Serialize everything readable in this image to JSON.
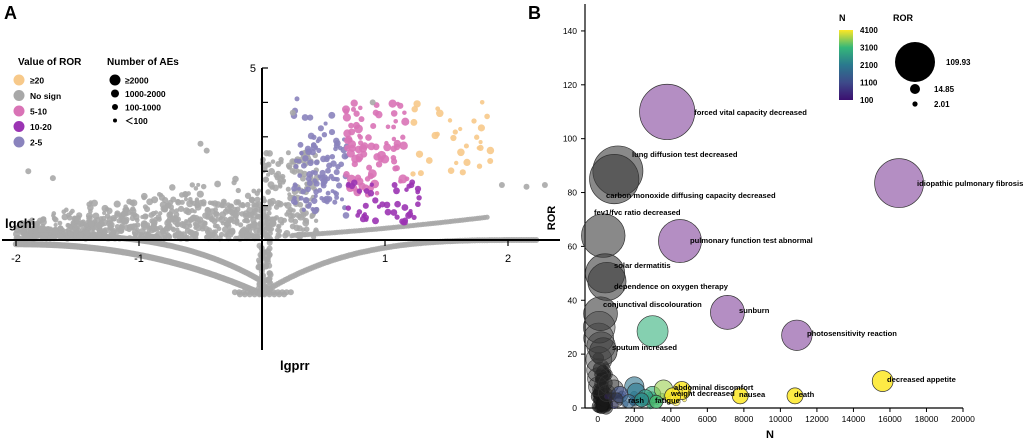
{
  "panels": {
    "a": "A",
    "b": "B"
  },
  "chart_data": [
    {
      "type": "scatter",
      "panel": "A",
      "title": "",
      "xlabel": "lgprr",
      "ylabel": "lgchi",
      "xlim": [
        -2.05,
        2.45
      ],
      "ylim": [
        -1.7,
        5.1
      ],
      "x_ticks": [
        -2,
        -1,
        1,
        2
      ],
      "y_ticks": [
        5
      ],
      "legend_color": {
        "title": "Value of ROR",
        "items": [
          {
            "label": "≥20",
            "color": "#f7c98a"
          },
          {
            "label": "No sign",
            "color": "#a8a8a8"
          },
          {
            "label": "5-10",
            "color": "#d973b6"
          },
          {
            "label": "10-20",
            "color": "#9b34b3"
          },
          {
            "label": "2-5",
            "color": "#8a83bd"
          }
        ]
      },
      "legend_size": {
        "title": "Number of AEs",
        "items": [
          {
            "label": "≥2000",
            "size": 4
          },
          {
            "label": "1000-2000",
            "size": 3
          },
          {
            "label": "100-1000",
            "size": 2
          },
          {
            "label": "＜100",
            "size": 1
          }
        ]
      },
      "colors": {
        "nosign": "#a8a8a8",
        "r2_5": "#8a83bd",
        "r5_10": "#d973b6",
        "r10_20": "#9b34b3",
        "r20": "#f7c98a"
      }
    },
    {
      "type": "scatter",
      "panel": "B",
      "title": "",
      "xlabel": "N",
      "ylabel": "ROR",
      "xlim": [
        -700,
        20000
      ],
      "ylim": [
        0,
        150
      ],
      "x_ticks": [
        0,
        2000,
        4000,
        6000,
        8000,
        10000,
        12000,
        14000,
        16000,
        18000,
        20000
      ],
      "y_ticks": [
        0,
        20,
        40,
        60,
        80,
        100,
        120,
        140
      ],
      "colorbar": {
        "title": "N",
        "ticks": [
          100,
          1100,
          2100,
          3100,
          4100
        ],
        "min": 100,
        "max": 4100
      },
      "size_legend": {
        "title": "ROR",
        "values": [
          109.93,
          14.85,
          2.01
        ]
      },
      "labeled_points": [
        {
          "label": "forced vital capacity decreased",
          "n": 3800,
          "ror": 109.93
        },
        {
          "label": "lung diffusion test  decreased",
          "n": 1100,
          "ror": 88
        },
        {
          "label": "carbon monoxide diffusing capacity decreased",
          "n": 900,
          "ror": 85
        },
        {
          "label": "idiopathic pulmonary fibrosis",
          "n": 16500,
          "ror": 83.5
        },
        {
          "label": "fev1/fvc ratio decreased",
          "n": 300,
          "ror": 64
        },
        {
          "label": "pulmonary function test abnormal",
          "n": 4500,
          "ror": 62
        },
        {
          "label": "solar dermatitis",
          "n": 400,
          "ror": 50
        },
        {
          "label": "dependence on oxygen therapy",
          "n": 500,
          "ror": 47
        },
        {
          "label": "conjunctival discolouration",
          "n": 150,
          "ror": 35
        },
        {
          "label": "sunburn",
          "n": 7100,
          "ror": 35.5
        },
        {
          "label": "photosensitivity reaction",
          "n": 10900,
          "ror": 27
        },
        {
          "label": "sputum increased",
          "n": 300,
          "ror": 21
        },
        {
          "label": "decreased appetite",
          "n": 15600,
          "ror": 10
        },
        {
          "label": "abdominal  discomfort",
          "n": 4600,
          "ror": 6.5
        },
        {
          "label": "nausea",
          "n": 7800,
          "ror": 4.5
        },
        {
          "label": "death",
          "n": 10800,
          "ror": 4.5
        },
        {
          "label": "weight decreased",
          "n": 4100,
          "ror": 4.5
        },
        {
          "label": "rash",
          "n": 2400,
          "ror": 3
        },
        {
          "label": "fatigue",
          "n": 3200,
          "ror": 2.3
        }
      ],
      "unlabeled_points": [
        {
          "n": 80,
          "ror": 30
        },
        {
          "n": 50,
          "ror": 26
        },
        {
          "n": 180,
          "ror": 23
        },
        {
          "n": 3000,
          "ror": 28.5
        },
        {
          "n": 60,
          "ror": 18
        },
        {
          "n": 40,
          "ror": 14
        },
        {
          "n": 30,
          "ror": 11
        },
        {
          "n": 20,
          "ror": 8
        },
        {
          "n": 600,
          "ror": 9
        },
        {
          "n": 900,
          "ror": 7
        },
        {
          "n": 2000,
          "ror": 8
        },
        {
          "n": 2100,
          "ror": 6
        },
        {
          "n": 1200,
          "ror": 5
        },
        {
          "n": 3000,
          "ror": 5
        },
        {
          "n": 3600,
          "ror": 7
        },
        {
          "n": 1000,
          "ror": 3
        },
        {
          "n": 1700,
          "ror": 2.5
        },
        {
          "n": 2600,
          "ror": 4
        },
        {
          "n": 500,
          "ror": 5.5
        }
      ]
    }
  ]
}
